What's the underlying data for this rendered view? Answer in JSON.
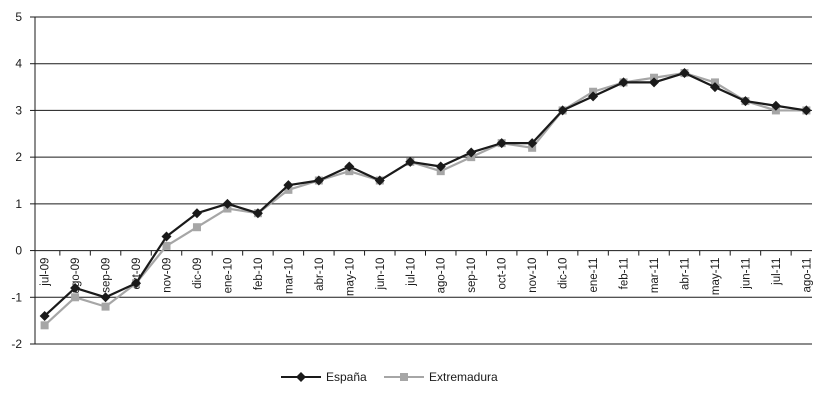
{
  "chart_data": {
    "type": "line",
    "categories": [
      "jul-09",
      "ago-09",
      "sep-09",
      "oct-09",
      "nov-09",
      "dic-09",
      "ene-10",
      "feb-10",
      "mar-10",
      "abr-10",
      "may-10",
      "jun-10",
      "jul-10",
      "ago-10",
      "sep-10",
      "oct-10",
      "nov-10",
      "dic-10",
      "ene-11",
      "feb-11",
      "mar-11",
      "abr-11",
      "may-11",
      "jun-11",
      "jul-11",
      "ago-11"
    ],
    "series": [
      {
        "name": "España",
        "color": "#1a1a1a",
        "marker": "diamond",
        "values": [
          -1.4,
          -0.8,
          -1.0,
          -0.7,
          0.3,
          0.8,
          1.0,
          0.8,
          1.4,
          1.5,
          1.8,
          1.5,
          1.9,
          1.8,
          2.1,
          2.3,
          2.3,
          3.0,
          3.3,
          3.6,
          3.6,
          3.8,
          3.5,
          3.2,
          3.1,
          3.0
        ]
      },
      {
        "name": "Extremadura",
        "color": "#a6a6a6",
        "marker": "square",
        "values": [
          -1.6,
          -1.0,
          -1.2,
          -0.7,
          0.1,
          0.5,
          0.9,
          0.8,
          1.3,
          1.5,
          1.7,
          1.5,
          1.9,
          1.7,
          2.0,
          2.3,
          2.2,
          3.0,
          3.4,
          3.6,
          3.7,
          3.8,
          3.6,
          3.2,
          3.0,
          3.0
        ]
      }
    ],
    "yticks": [
      "5",
      "4",
      "3",
      "2",
      "1",
      "0",
      "-1",
      "-2"
    ],
    "ylim": [
      -2,
      5
    ],
    "grid": true,
    "legend_position": "bottom-center",
    "title": "",
    "xlabel": "",
    "ylabel": ""
  }
}
